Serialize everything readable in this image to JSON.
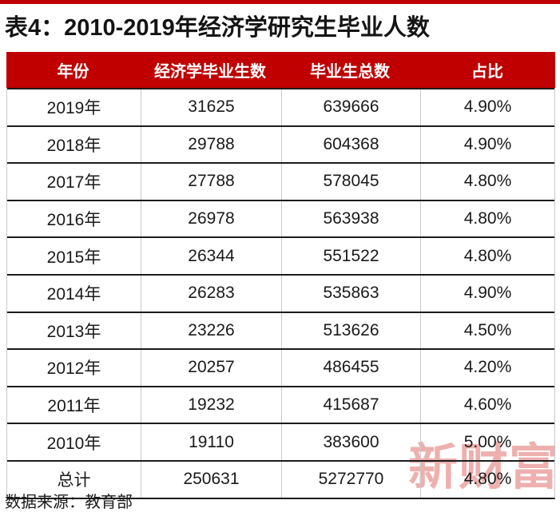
{
  "page": {
    "accent_red": "#c00000",
    "watermark_text": "新财富",
    "watermark_color": "#d9504b"
  },
  "title": "表4：2010-2019年经济学研究生毕业人数",
  "table": {
    "headers": [
      "年份",
      "经济学毕业生数",
      "毕业生总数",
      "占比"
    ],
    "rows": [
      [
        "2019年",
        "31625",
        "639666",
        "4.90%"
      ],
      [
        "2018年",
        "29788",
        "604368",
        "4.90%"
      ],
      [
        "2017年",
        "27788",
        "578045",
        "4.80%"
      ],
      [
        "2016年",
        "26978",
        "563938",
        "4.80%"
      ],
      [
        "2015年",
        "26344",
        "551522",
        "4.80%"
      ],
      [
        "2014年",
        "26283",
        "535863",
        "4.90%"
      ],
      [
        "2013年",
        "23226",
        "513626",
        "4.50%"
      ],
      [
        "2012年",
        "20257",
        "486455",
        "4.20%"
      ],
      [
        "2011年",
        "19232",
        "415687",
        "4.60%"
      ],
      [
        "2010年",
        "19110",
        "383600",
        "5.00%"
      ],
      [
        "总计",
        "250631",
        "5272770",
        "4.80%"
      ]
    ]
  },
  "footer": {
    "source": "数据来源：教育部"
  },
  "chart_data": {
    "type": "table",
    "title": "表4：2010-2019年经济学研究生毕业人数",
    "columns": [
      "年份",
      "经济学毕业生数",
      "毕业生总数",
      "占比"
    ],
    "rows": [
      [
        "2019年",
        31625,
        639666,
        "4.90%"
      ],
      [
        "2018年",
        29788,
        604368,
        "4.90%"
      ],
      [
        "2017年",
        27788,
        578045,
        "4.80%"
      ],
      [
        "2016年",
        26978,
        563938,
        "4.80%"
      ],
      [
        "2015年",
        26344,
        551522,
        "4.80%"
      ],
      [
        "2014年",
        26283,
        535863,
        "4.90%"
      ],
      [
        "2013年",
        23226,
        513626,
        "4.50%"
      ],
      [
        "2012年",
        20257,
        486455,
        "4.20%"
      ],
      [
        "2011年",
        19232,
        415687,
        "4.60%"
      ],
      [
        "2010年",
        19110,
        383600,
        "5.00%"
      ],
      [
        "总计",
        250631,
        5272770,
        "4.80%"
      ]
    ],
    "source_note": "数据来源：教育部"
  }
}
